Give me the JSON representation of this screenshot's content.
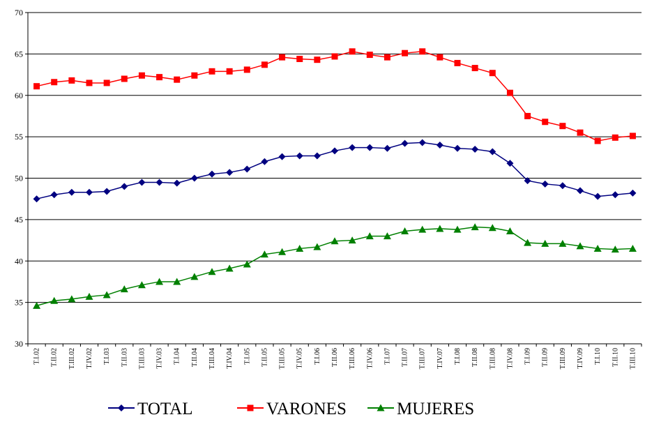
{
  "chart_data": {
    "type": "line",
    "categories": [
      "T.I.02",
      "T.II.02",
      "T.III.02",
      "T.IV.02",
      "T.I.03",
      "T.II.03",
      "T.III.03",
      "T.IV.03",
      "T.I.04",
      "T.II.04",
      "T.III.04",
      "T.IV.04",
      "T.I.05",
      "T.II.05",
      "T.III.05",
      "T.IV.05",
      "T.I.06",
      "T.II.06",
      "T.III.06",
      "T.IV.06",
      "T.I.07",
      "T.II.07",
      "T.III.07",
      "T.IV.07",
      "T.I.08",
      "T.II.08",
      "T.III.08",
      "T.IV.08",
      "T.I.09",
      "T.II.09",
      "T.III.09",
      "T.IV.09",
      "T.I.10",
      "T.II.10",
      "T.III.10"
    ],
    "series": [
      {
        "name": "TOTAL",
        "color": "#000080",
        "marker": "diamond",
        "values": [
          47.5,
          48.0,
          48.3,
          48.3,
          48.4,
          49.0,
          49.5,
          49.5,
          49.4,
          50.0,
          50.5,
          50.7,
          51.1,
          52.0,
          52.6,
          52.7,
          52.7,
          53.3,
          53.7,
          53.7,
          53.6,
          54.2,
          54.3,
          54.0,
          53.6,
          53.5,
          53.2,
          51.8,
          49.7,
          49.3,
          49.1,
          48.5,
          47.8,
          48.0,
          48.2
        ]
      },
      {
        "name": "VARONES",
        "color": "#ff0000",
        "marker": "square",
        "values": [
          61.1,
          61.6,
          61.8,
          61.5,
          61.5,
          62.0,
          62.4,
          62.2,
          61.9,
          62.4,
          62.9,
          62.9,
          63.1,
          63.7,
          64.6,
          64.4,
          64.3,
          64.7,
          65.3,
          64.9,
          64.6,
          65.1,
          65.3,
          64.6,
          63.9,
          63.3,
          62.7,
          60.3,
          57.5,
          56.8,
          56.3,
          55.5,
          54.5,
          54.9,
          55.1
        ]
      },
      {
        "name": "MUJERES",
        "color": "#008000",
        "marker": "triangle",
        "values": [
          34.6,
          35.2,
          35.4,
          35.7,
          35.9,
          36.6,
          37.1,
          37.5,
          37.5,
          38.1,
          38.7,
          39.1,
          39.6,
          40.8,
          41.1,
          41.5,
          41.7,
          42.4,
          42.5,
          43.0,
          43.0,
          43.6,
          43.8,
          43.9,
          43.8,
          44.1,
          44.0,
          43.6,
          42.2,
          42.1,
          42.1,
          41.8,
          41.5,
          41.4,
          41.5
        ]
      }
    ],
    "ylim": [
      30,
      70
    ],
    "yticks": [
      30,
      35,
      40,
      45,
      50,
      55,
      60,
      65,
      70
    ],
    "grid": true,
    "legend": "bottom"
  }
}
